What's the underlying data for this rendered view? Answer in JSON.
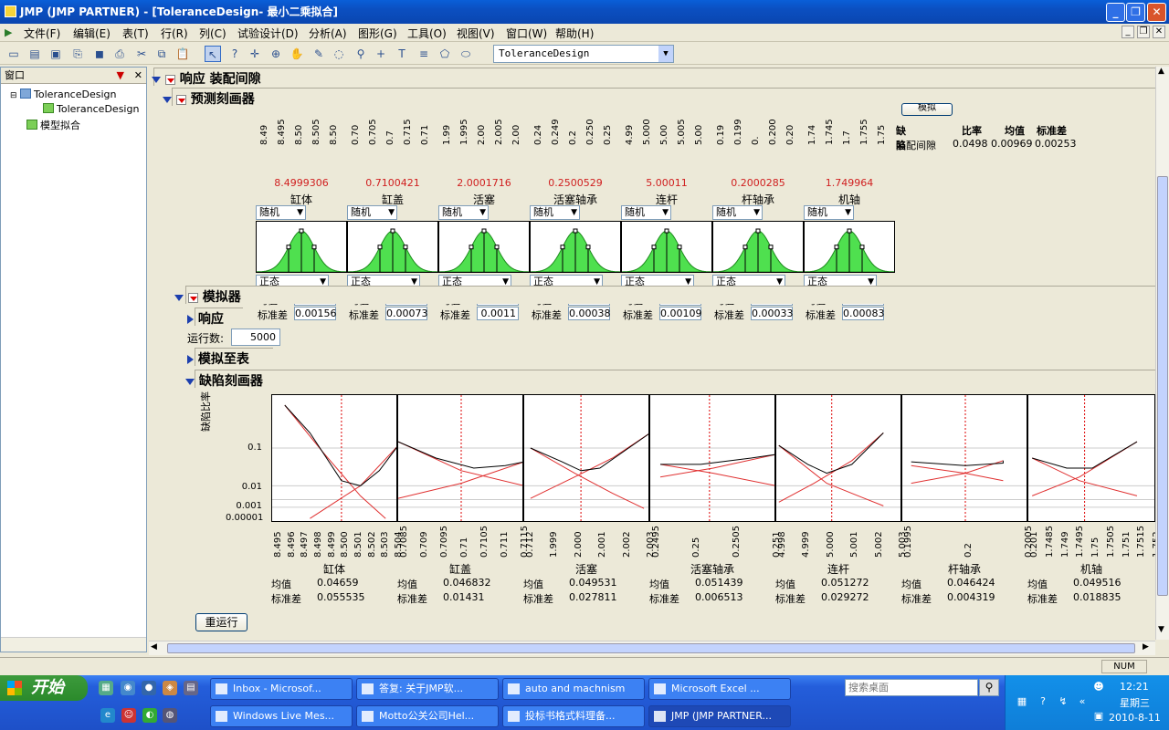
{
  "window": {
    "title": "JMP (JMP PARTNER)  - [ToleranceDesign- 最小二乘拟合]"
  },
  "menu": [
    "文件(F)",
    "编辑(E)",
    "表(T)",
    "行(R)",
    "列(C)",
    "试验设计(D)",
    "分析(A)",
    "图形(G)",
    "工具(O)",
    "视图(V)",
    "窗口(W)",
    "帮助(H)"
  ],
  "toolbar": {
    "table_selector": "ToleranceDesign"
  },
  "left_pane": {
    "title": "窗口",
    "items": [
      "ToleranceDesign",
      "ToleranceDesign",
      "模型拟合"
    ]
  },
  "report": {
    "response_title": "响应 装配间隙",
    "profiler_title": "预测刻画器",
    "simulator_title": "模拟器",
    "response_sub": "响应",
    "runs_label": "运行数:",
    "runs_value": "5000",
    "sim_to_table": "模拟至表",
    "defect_profiler_title": "缺陷刻画器",
    "rerun_button": "重运行",
    "simulate_button": "模拟"
  },
  "defect_summary": {
    "headers": [
      "缺陷",
      "比率",
      "均值",
      "标准差"
    ],
    "row": [
      "装配间隙",
      "0.0498",
      "0.00969",
      "0.00253"
    ]
  },
  "factors": [
    {
      "name": "缸体",
      "current": "8.4999306",
      "ticks": [
        "8.49",
        "8.495",
        "8.50",
        "8.505",
        "8.50"
      ],
      "mode": "随机",
      "dist": "正态",
      "mean": "8.49993",
      "sd": "0.00156"
    },
    {
      "name": "缸盖",
      "current": "0.7100421",
      "ticks": [
        "0.70",
        "0.705",
        "0.7",
        "0.715",
        "0.71"
      ],
      "mode": "随机",
      "dist": "正态",
      "mean": "0.71004",
      "sd": "0.00073"
    },
    {
      "name": "活塞",
      "current": "2.0001716",
      "ticks": [
        "1.99",
        "1.995",
        "2.00",
        "2.005",
        "2.00"
      ],
      "mode": "随机",
      "dist": "正态",
      "mean": "2.00017",
      "sd": "0.0011"
    },
    {
      "name": "活塞轴承",
      "current": "0.2500529",
      "ticks": [
        "0.24",
        "0.249",
        "0.2",
        "0.250",
        "0.25"
      ],
      "mode": "随机",
      "dist": "正态",
      "mean": "0.25005",
      "sd": "0.00038"
    },
    {
      "name": "连杆",
      "current": "5.00011",
      "ticks": [
        "4.99",
        "5.000",
        "5.00",
        "5.005",
        "5.00"
      ],
      "mode": "随机",
      "dist": "正态",
      "mean": "5.00011",
      "sd": "0.00109"
    },
    {
      "name": "杆轴承",
      "current": "0.2000285",
      "ticks": [
        "0.19",
        "0.199",
        "0.",
        "0.200",
        "0.20"
      ],
      "mode": "随机",
      "dist": "正态",
      "mean": "0.20003",
      "sd": "0.00033"
    },
    {
      "name": "机轴",
      "current": "1.749964",
      "ticks": [
        "1.74",
        "1.745",
        "1.7",
        "1.755",
        "1.75"
      ],
      "mode": "随机",
      "dist": "正态",
      "mean": "1.74996",
      "sd": "0.00083"
    }
  ],
  "stat_labels": {
    "mean": "均值",
    "sd": "标准差"
  },
  "defect_profiler": {
    "y_axis_label": "缺陷比率",
    "y_ticks": [
      "0.1",
      "0.01",
      "0.001",
      "0.00001"
    ],
    "panels": [
      {
        "name": "缸体",
        "xticks": [
          "8.495",
          "8.496",
          "8.497",
          "8.498",
          "8.499",
          "8.500",
          "8.501",
          "8.502",
          "8.503",
          "8.504"
        ],
        "mean": "0.04659",
        "sd": "0.055535"
      },
      {
        "name": "缸盖",
        "xticks": [
          "0.7085",
          "0.709",
          "0.7095",
          "0.71",
          "0.7105",
          "0.711",
          "0.7115"
        ],
        "mean": "0.046832",
        "sd": "0.01431"
      },
      {
        "name": "活塞",
        "xticks": [
          "0.712",
          "1.999",
          "2.000",
          "2.001",
          "2.002",
          "2.003"
        ],
        "mean": "0.049531",
        "sd": "0.027811"
      },
      {
        "name": "活塞轴承",
        "xticks": [
          "0.2495",
          "0.25",
          "0.2505",
          "0.251"
        ],
        "mean": "0.051439",
        "sd": "0.006513"
      },
      {
        "name": "连杆",
        "xticks": [
          "4.998",
          "4.999",
          "5.000",
          "5.001",
          "5.002",
          "5.003"
        ],
        "mean": "0.051272",
        "sd": "0.029272"
      },
      {
        "name": "杆轴承",
        "xticks": [
          "0.1995",
          "0.2",
          "0.2005"
        ],
        "mean": "0.046424",
        "sd": "0.004319"
      },
      {
        "name": "机轴",
        "xticks": [
          "0.201",
          "1.7485",
          "1.749",
          "1.7495",
          "1.75",
          "1.7505",
          "1.751",
          "1.7515",
          "1.752"
        ],
        "mean": "0.049516",
        "sd": "0.018835"
      }
    ]
  },
  "status": {
    "num": "NUM"
  },
  "taskbar": {
    "start": "开始",
    "row1": [
      "Inbox - Microsof...",
      "答复: 关于JMP软...",
      "auto and machnism",
      "Microsoft Excel ..."
    ],
    "row2": [
      "Windows Live Mes...",
      "Motto公关公司Hel...",
      "投标书格式料理备...",
      "JMP (JMP PARTNER..."
    ],
    "search_placeholder": "搜索桌面",
    "time": "12:21",
    "weekday": "星期三",
    "date": "2010-8-11"
  }
}
